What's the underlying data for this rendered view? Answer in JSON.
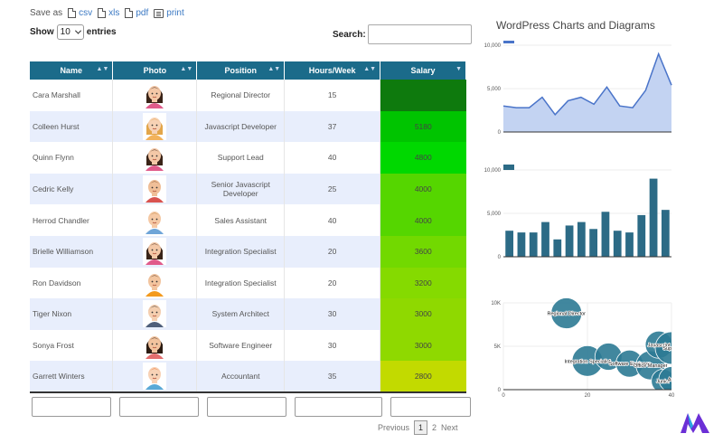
{
  "toolbar": {
    "save_as": "Save as",
    "csv": "csv",
    "xls": "xls",
    "pdf": "pdf",
    "print": "print"
  },
  "length": {
    "show": "Show",
    "value": "10",
    "entries": "entries"
  },
  "search": {
    "label": "Search:",
    "value": ""
  },
  "table": {
    "columns": [
      "Name",
      "Photo",
      "Position",
      "Hours/Week",
      "Salary"
    ],
    "rows": [
      {
        "name": "Cara Marshall",
        "position": "Regional Director",
        "hours": "15",
        "salary": "",
        "color": "#0e7a0d",
        "avatar": "female-dark-hair"
      },
      {
        "name": "Colleen Hurst",
        "position": "Javascript Developer",
        "hours": "37",
        "salary": "5180",
        "color": "#00c400",
        "avatar": "female-blonde"
      },
      {
        "name": "Quinn Flynn",
        "position": "Support Lead",
        "hours": "40",
        "salary": "4800",
        "color": "#00d800",
        "avatar": "female-dark-hair"
      },
      {
        "name": "Cedric Kelly",
        "position": "Senior Javascript Developer",
        "hours": "25",
        "salary": "4000",
        "color": "#55d600",
        "avatar": "male-beard"
      },
      {
        "name": "Herrod Chandler",
        "position": "Sales Assistant",
        "hours": "40",
        "salary": "4000",
        "color": "#55d600",
        "avatar": "male-light-hair"
      },
      {
        "name": "Brielle Williamson",
        "position": "Integration Specialist",
        "hours": "20",
        "salary": "3600",
        "color": "#72d900",
        "avatar": "female-dark-hair"
      },
      {
        "name": "Ron Davidson",
        "position": "Integration Specialist",
        "hours": "20",
        "salary": "3200",
        "color": "#85da00",
        "avatar": "male-orange"
      },
      {
        "name": "Tiger Nixon",
        "position": "System Architect",
        "hours": "30",
        "salary": "3000",
        "color": "#8fd900",
        "avatar": "male-dark"
      },
      {
        "name": "Sonya Frost",
        "position": "Software Engineer",
        "hours": "30",
        "salary": "3000",
        "color": "#8fd900",
        "avatar": "female-bun"
      },
      {
        "name": "Garrett Winters",
        "position": "Accountant",
        "hours": "35",
        "salary": "2800",
        "color": "#c2da00",
        "avatar": "male-redhead"
      }
    ]
  },
  "pager": {
    "previous": "Previous",
    "pages": [
      "1",
      "2"
    ],
    "current": "1",
    "next": "Next"
  },
  "sidebar": {
    "title": "WordPress Charts and Diagrams"
  },
  "chart_data": [
    {
      "type": "area",
      "x": [
        1,
        2,
        3,
        4,
        5,
        6,
        7,
        8,
        9,
        10,
        11,
        12,
        13,
        14
      ],
      "values": [
        3000,
        2800,
        2800,
        4000,
        2000,
        3600,
        4000,
        3200,
        5180,
        3000,
        2800,
        4800,
        9000,
        5400
      ],
      "ylim": [
        0,
        10000
      ],
      "yticks": [
        "0",
        "5,000",
        "10,000"
      ],
      "color": "#4a74c9",
      "fill": "#c3d3f2"
    },
    {
      "type": "bar",
      "x": [
        1,
        2,
        3,
        4,
        5,
        6,
        7,
        8,
        9,
        10,
        11,
        12,
        13,
        14
      ],
      "values": [
        3000,
        2800,
        2800,
        4000,
        2000,
        3600,
        4000,
        3200,
        5180,
        3000,
        2800,
        4800,
        9000,
        5400
      ],
      "ylim": [
        0,
        10000
      ],
      "yticks": [
        "0",
        "5,000",
        "10,000"
      ],
      "color": "#2c6b86"
    },
    {
      "type": "scatter",
      "xlim": [
        0,
        40
      ],
      "ylim": [
        0,
        10000
      ],
      "xticks": [
        "0",
        "20",
        "40"
      ],
      "yticks": [
        "0",
        "5K",
        "10K"
      ],
      "color": "#2c7a93",
      "points": [
        {
          "x": 15,
          "y": 8800,
          "r": 17,
          "label": "Regional Director"
        },
        {
          "x": 20,
          "y": 3300,
          "r": 17,
          "label": "Integration Specialist"
        },
        {
          "x": 25,
          "y": 3800,
          "r": 15,
          "label": ""
        },
        {
          "x": 30,
          "y": 3000,
          "r": 15,
          "label": "Software Engineer"
        },
        {
          "x": 35,
          "y": 2800,
          "r": 16,
          "label": "Office Manager"
        },
        {
          "x": 37,
          "y": 5180,
          "r": 15,
          "label": "Javascript"
        },
        {
          "x": 40,
          "y": 4800,
          "r": 18,
          "label": "Support"
        },
        {
          "x": 38,
          "y": 1000,
          "r": 13,
          "label": "Junior"
        },
        {
          "x": 40,
          "y": 1200,
          "r": 14,
          "label": "Aut"
        }
      ]
    }
  ]
}
